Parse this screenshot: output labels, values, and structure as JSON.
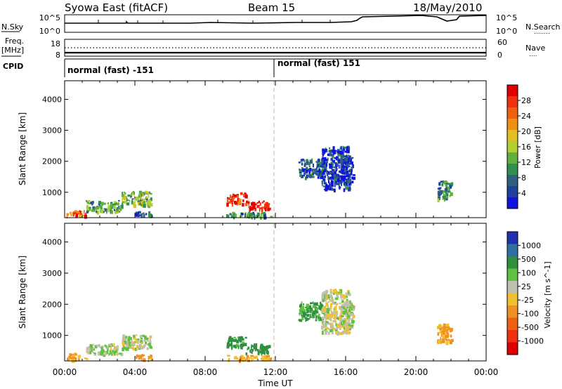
{
  "header": {
    "station": "Syowa East (fitACF)",
    "beam": "Beam 15",
    "date": "18/May/2010"
  },
  "nsky_panel": {
    "left_label": "N.Sky",
    "left_ticks": [
      "10^5",
      "10^0"
    ],
    "right_ticks": [
      "10^5",
      "10^0"
    ],
    "right_label": "N.Search",
    "right_legend_line": "........"
  },
  "freq_panel": {
    "left_label_1": "Freq.",
    "left_label_2": "[MHz]",
    "left_ticks": [
      "18",
      "8"
    ],
    "right_ticks": [
      "60",
      "0"
    ],
    "right_label": "Nave",
    "right_legend_line": "...."
  },
  "cpid_panel": {
    "label": "CPID",
    "segments": [
      {
        "text": "normal (fast) -151",
        "start_hour": 0,
        "end_hour": 12
      },
      {
        "text": "normal (fast) 151",
        "start_hour": 12,
        "end_hour": 24
      }
    ]
  },
  "x_axis": {
    "label": "Time UT",
    "ticks": [
      "00:00",
      "04:00",
      "08:00",
      "12:00",
      "16:00",
      "20:00",
      "00:00"
    ],
    "tick_hours": [
      0,
      4,
      8,
      12,
      16,
      20,
      24
    ]
  },
  "power_panel": {
    "ylabel": "Slant Range [km]",
    "yticks": [
      "4000",
      "3000",
      "2000",
      "1000"
    ],
    "ytick_values": [
      4000,
      3000,
      2000,
      1000
    ],
    "colorbar_label": "Power [dB]",
    "colorbar_ticks": [
      "28",
      "24",
      "20",
      "16",
      "12",
      "8",
      "4"
    ],
    "colorbar_colors": [
      "#e00000",
      "#f03010",
      "#f06010",
      "#f09010",
      "#e0c020",
      "#b0d030",
      "#60b040",
      "#309050",
      "#306080",
      "#2040a0",
      "#1010e0"
    ]
  },
  "velocity_panel": {
    "ylabel": "Slant Range [km]",
    "yticks": [
      "4000",
      "3000",
      "2000",
      "1000"
    ],
    "ytick_values": [
      4000,
      3000,
      2000,
      1000
    ],
    "colorbar_label": "Velocity [m s^-1]",
    "colorbar_ticks": [
      "1000",
      "500",
      "100",
      "25",
      "-25",
      "-100",
      "-500",
      "-1000"
    ],
    "colorbar_colors": [
      "#2030b0",
      "#3070a0",
      "#309040",
      "#60c040",
      "#c0c0b0",
      "#f0c030",
      "#f09020",
      "#f06010",
      "#f03010",
      "#e00000"
    ]
  },
  "chart_data": {
    "type": "heatmap",
    "x_unit": "hours UT",
    "y_unit": "km",
    "ylim": [
      180,
      4600
    ],
    "xlim": [
      0,
      24
    ],
    "scatter_blobs": [
      {
        "t0": 0.1,
        "t1": 1.2,
        "r0": 250,
        "r1": 450,
        "power": 24,
        "velocity": -120
      },
      {
        "t0": 1.2,
        "t1": 3.2,
        "r0": 400,
        "r1": 750,
        "power": 12,
        "velocity": 20
      },
      {
        "t0": 3.2,
        "t1": 4.9,
        "r0": 600,
        "r1": 1050,
        "power": 14,
        "velocity": 10
      },
      {
        "t0": 4.0,
        "t1": 4.9,
        "r0": 250,
        "r1": 400,
        "power": 6,
        "velocity": -150
      },
      {
        "t0": 9.2,
        "t1": 10.3,
        "r0": 650,
        "r1": 1000,
        "power": 26,
        "velocity": 150
      },
      {
        "t0": 10.3,
        "t1": 11.6,
        "r0": 450,
        "r1": 750,
        "power": 28,
        "velocity": 180
      },
      {
        "t0": 9.2,
        "t1": 11.8,
        "r0": 220,
        "r1": 380,
        "power": 10,
        "velocity": -90
      },
      {
        "t0": 13.3,
        "t1": 14.8,
        "r0": 1500,
        "r1": 2100,
        "power": 8,
        "velocity": 120
      },
      {
        "t0": 14.6,
        "t1": 16.2,
        "r0": 1100,
        "r1": 2500,
        "power": 6,
        "velocity": -10
      },
      {
        "t0": 15.7,
        "t1": 16.4,
        "r0": 1300,
        "r1": 2200,
        "power": 5,
        "velocity": 20
      },
      {
        "t0": 21.2,
        "t1": 22.0,
        "r0": 800,
        "r1": 1400,
        "power": 10,
        "velocity": -120
      }
    ]
  }
}
